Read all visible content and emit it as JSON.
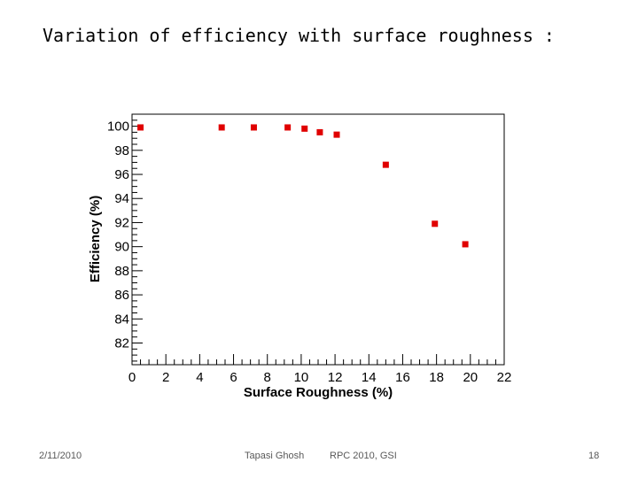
{
  "slide": {
    "title": "Variation of efficiency with surface roughness :",
    "footer_date": "2/11/2010",
    "footer_author": "Tapasi Ghosh",
    "footer_event": "RPC 2010, GSI",
    "footer_page": "18"
  },
  "chart_data": {
    "type": "scatter",
    "title": "",
    "xlabel": "Surface Roughness (%)",
    "ylabel": "Efficiency (%)",
    "xlim": [
      0,
      22
    ],
    "ylim": [
      80.2,
      101
    ],
    "x_ticks": [
      "0",
      "2",
      "4",
      "6",
      "8",
      "10",
      "12",
      "14",
      "16",
      "18",
      "20",
      "22"
    ],
    "y_ticks": [
      "82",
      "84",
      "86",
      "88",
      "90",
      "92",
      "94",
      "96",
      "98",
      "100"
    ],
    "grid": false,
    "marker_color": "#e00000",
    "series": [
      {
        "name": "efficiency",
        "x": [
          0.5,
          5.3,
          7.2,
          9.2,
          10.2,
          11.1,
          12.1,
          15.0,
          17.9,
          19.7
        ],
        "y": [
          99.9,
          99.9,
          99.9,
          99.9,
          99.8,
          99.5,
          99.3,
          96.8,
          91.9,
          90.2
        ]
      }
    ]
  }
}
